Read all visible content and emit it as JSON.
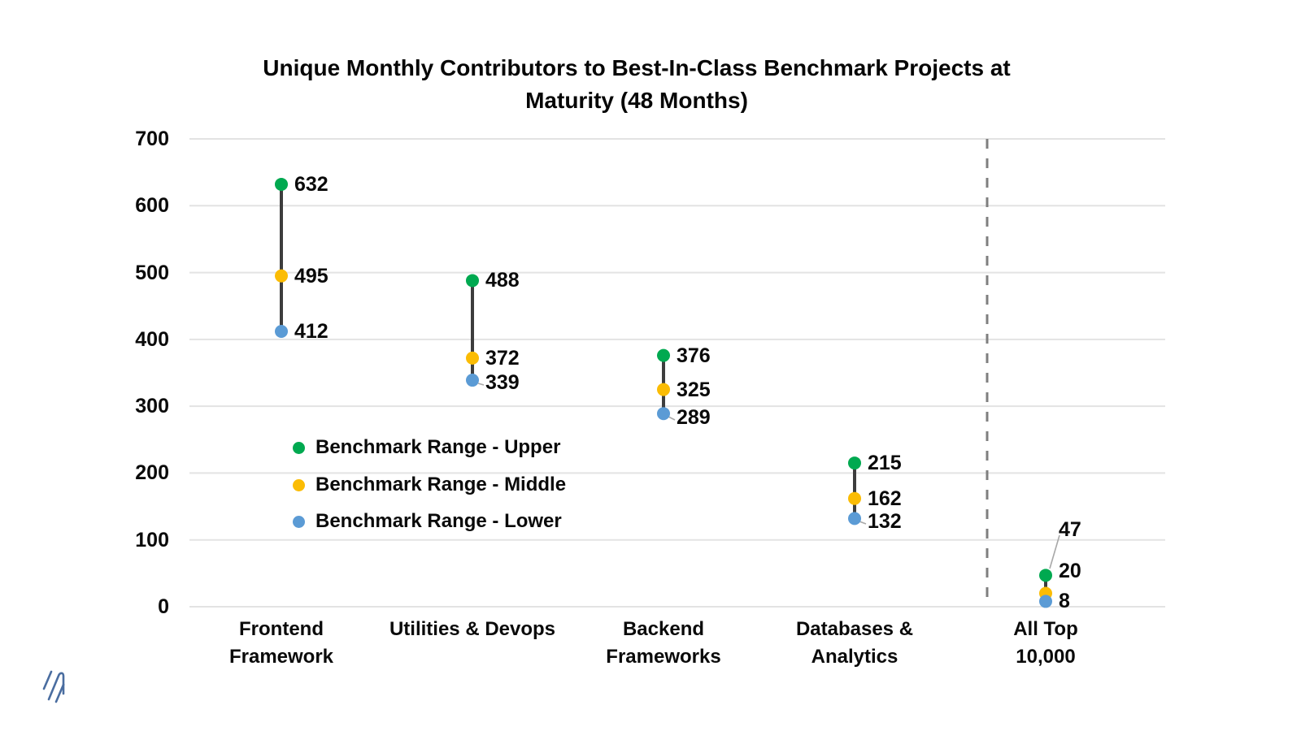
{
  "chart_data": {
    "type": "dot-range",
    "title": "Unique Monthly Contributors to Best-In-Class Benchmark Projects at Maturity (48 Months)",
    "title_lines": [
      "Unique Monthly Contributors to Best-In-Class Benchmark Projects at",
      "Maturity (48 Months)"
    ],
    "categories": [
      "Frontend Framework",
      "Utilities & Devops",
      "Backend Frameworks",
      "Databases & Analytics",
      "All Top 10,000"
    ],
    "category_label_lines": [
      [
        "Frontend",
        "Framework"
      ],
      [
        "Utilities & Devops"
      ],
      [
        "Backend",
        "Frameworks"
      ],
      [
        "Databases &",
        "Analytics"
      ],
      [
        "All Top",
        "10,000"
      ]
    ],
    "series": [
      {
        "name": "Benchmark Range - Upper",
        "color": "#00A950",
        "values": [
          632,
          488,
          376,
          215,
          47
        ]
      },
      {
        "name": "Benchmark Range - Middle",
        "color": "#FBBC04",
        "values": [
          495,
          372,
          325,
          162,
          20
        ]
      },
      {
        "name": "Benchmark Range - Lower",
        "color": "#5B9BD5",
        "values": [
          412,
          339,
          289,
          132,
          8
        ]
      }
    ],
    "ylim": [
      0,
      700
    ],
    "ytick_step": 100,
    "yticks": [
      0,
      100,
      200,
      300,
      400,
      500,
      600,
      700
    ],
    "grid": true,
    "legend_position": "inside-left-middle",
    "separator": {
      "after_category": "Databases & Analytics",
      "style": "dashed",
      "color": "#7F7F7F"
    },
    "connector_color": "#3D3D3D",
    "gridline_color": "#E3E3E3",
    "leader_color": "#A8A8A8",
    "text_color": "#0A0A0A"
  },
  "branding": {
    "logo": "double-slash-mark",
    "logo_color": "#4A6DA0"
  }
}
